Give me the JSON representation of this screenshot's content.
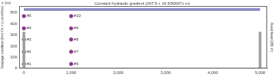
{
  "chart_data": {
    "type": "scatter",
    "y_label": "z (m)",
    "xlim": [
      -100,
      5150
    ],
    "ylim": [
      0,
      560
    ],
    "xticks": [
      0,
      1000,
      2000,
      3000,
      4000,
      5000
    ],
    "yticks": [
      0,
      100,
      200,
      300,
      400,
      500
    ],
    "grid": false,
    "marker": "circle",
    "color": "#8e3a8e",
    "points": [
      {
        "label": "#1",
        "x": 0,
        "z": 40
      },
      {
        "label": "#2",
        "x": 0,
        "z": 150
      },
      {
        "label": "#3",
        "x": 0,
        "z": 260
      },
      {
        "label": "#4",
        "x": 0,
        "z": 360
      },
      {
        "label": "#5",
        "x": 0,
        "z": 470
      },
      {
        "label": "#6",
        "x": 1000,
        "z": 40
      },
      {
        "label": "#7",
        "x": 1000,
        "z": 150
      },
      {
        "label": "#8",
        "x": 1000,
        "z": 260
      },
      {
        "label": "#9",
        "x": 1000,
        "z": 360
      },
      {
        "label": "#10",
        "x": 1000,
        "z": 470
      }
    ],
    "boundaries": [
      {
        "label": "Constant hydraulic gradient (267.5 + 16.5/5000*x m)",
        "side": "top",
        "x": [
          0,
          5000
        ],
        "z": [
          530,
          530
        ],
        "color": "#8c8cc8"
      },
      {
        "label": "Seepage condition (h=z if h > z; no inflow)",
        "side": "left",
        "x": [
          0,
          0
        ],
        "z": [
          0,
          330
        ],
        "color": "#a0a0a0"
      },
      {
        "label": "Fixed head (280 m)",
        "side": "right",
        "x": [
          5000,
          5000
        ],
        "z": [
          0,
          330
        ],
        "color": "#a0a0a0"
      }
    ]
  }
}
